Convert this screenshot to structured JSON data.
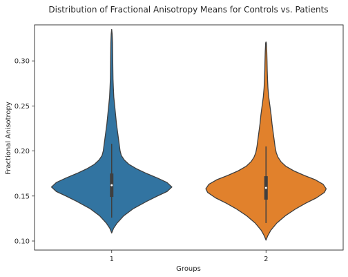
{
  "chart_data": {
    "type": "violin",
    "title": "Distribution of Fractional Anisotropy Means for Controls vs. Patients",
    "xlabel": "Groups",
    "ylabel": "Fractional Anisotropy",
    "categories": [
      "1",
      "2"
    ],
    "ylim": [
      0.09,
      0.34
    ],
    "yticks": [
      "0.10",
      "0.15",
      "0.20",
      "0.25",
      "0.30"
    ],
    "grid": false,
    "series": [
      {
        "category": "1",
        "color": "#3274a1",
        "min": 0.109,
        "max": 0.335,
        "whisker_low": 0.126,
        "q1": 0.149,
        "median": 0.162,
        "q3": 0.175,
        "whisker_high": 0.208,
        "density": [
          [
            0.109,
            0.0
          ],
          [
            0.114,
            0.03
          ],
          [
            0.12,
            0.09
          ],
          [
            0.128,
            0.2
          ],
          [
            0.136,
            0.36
          ],
          [
            0.144,
            0.58
          ],
          [
            0.15,
            0.76
          ],
          [
            0.155,
            0.92
          ],
          [
            0.16,
            1.0
          ],
          [
            0.165,
            0.92
          ],
          [
            0.17,
            0.76
          ],
          [
            0.175,
            0.58
          ],
          [
            0.18,
            0.42
          ],
          [
            0.185,
            0.29
          ],
          [
            0.19,
            0.21
          ],
          [
            0.195,
            0.16
          ],
          [
            0.2,
            0.14
          ],
          [
            0.205,
            0.13
          ],
          [
            0.21,
            0.12
          ],
          [
            0.215,
            0.11
          ],
          [
            0.22,
            0.1
          ],
          [
            0.225,
            0.09
          ],
          [
            0.23,
            0.08
          ],
          [
            0.24,
            0.065
          ],
          [
            0.25,
            0.05
          ],
          [
            0.26,
            0.035
          ],
          [
            0.27,
            0.028
          ],
          [
            0.28,
            0.022
          ],
          [
            0.29,
            0.02
          ],
          [
            0.3,
            0.018
          ],
          [
            0.31,
            0.016
          ],
          [
            0.32,
            0.014
          ],
          [
            0.33,
            0.008
          ],
          [
            0.335,
            0.0
          ]
        ]
      },
      {
        "category": "2",
        "color": "#e1812c",
        "min": 0.101,
        "max": 0.321,
        "whisker_low": 0.12,
        "q1": 0.146,
        "median": 0.159,
        "q3": 0.172,
        "whisker_high": 0.205,
        "density": [
          [
            0.101,
            0.0
          ],
          [
            0.106,
            0.03
          ],
          [
            0.112,
            0.08
          ],
          [
            0.12,
            0.18
          ],
          [
            0.128,
            0.32
          ],
          [
            0.136,
            0.5
          ],
          [
            0.142,
            0.66
          ],
          [
            0.148,
            0.84
          ],
          [
            0.154,
            0.97
          ],
          [
            0.158,
            1.0
          ],
          [
            0.163,
            0.95
          ],
          [
            0.168,
            0.82
          ],
          [
            0.173,
            0.63
          ],
          [
            0.178,
            0.46
          ],
          [
            0.183,
            0.33
          ],
          [
            0.188,
            0.25
          ],
          [
            0.193,
            0.2
          ],
          [
            0.198,
            0.17
          ],
          [
            0.205,
            0.15
          ],
          [
            0.21,
            0.14
          ],
          [
            0.215,
            0.13
          ],
          [
            0.22,
            0.12
          ],
          [
            0.225,
            0.11
          ],
          [
            0.23,
            0.1
          ],
          [
            0.24,
            0.085
          ],
          [
            0.25,
            0.065
          ],
          [
            0.26,
            0.045
          ],
          [
            0.27,
            0.032
          ],
          [
            0.28,
            0.025
          ],
          [
            0.29,
            0.02
          ],
          [
            0.3,
            0.017
          ],
          [
            0.31,
            0.013
          ],
          [
            0.32,
            0.006
          ],
          [
            0.321,
            0.0
          ]
        ]
      }
    ]
  }
}
